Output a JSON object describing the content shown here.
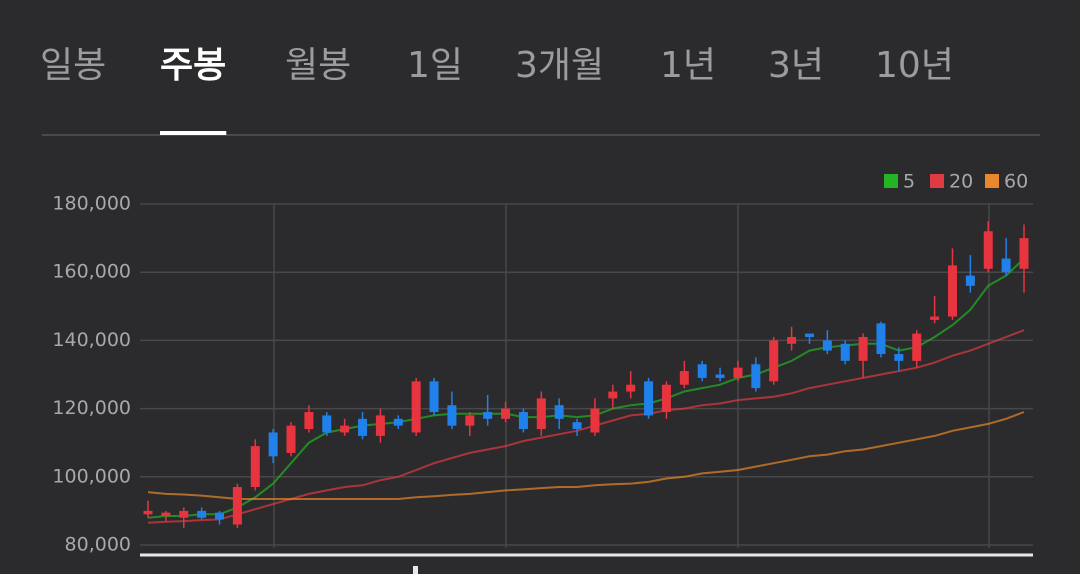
{
  "tabs": {
    "items": [
      "일봉",
      "주봉",
      "월봉",
      "1일",
      "3개월",
      "1년",
      "3년",
      "10년"
    ],
    "selected": 1
  },
  "chart_data": {
    "type": "candlestick",
    "ylim": [
      80000,
      180000
    ],
    "yticks": [
      {
        "value": 80000,
        "label": "80,000"
      },
      {
        "value": 100000,
        "label": "100,000"
      },
      {
        "value": 120000,
        "label": "120,000"
      },
      {
        "value": 140000,
        "label": "140,000"
      },
      {
        "value": 160000,
        "label": "160,000"
      },
      {
        "value": 180000,
        "label": "180,000"
      }
    ],
    "grid": true,
    "legend": "top-right",
    "up_color": "#e8343e",
    "down_color": "#2181ea",
    "ohlc": {
      "open": [
        89000,
        88500,
        88000,
        90000,
        89500,
        86000,
        97000,
        113000,
        107000,
        114000,
        118000,
        113000,
        117000,
        112000,
        117000,
        113000,
        128000,
        121000,
        115000,
        119000,
        117000,
        119000,
        114000,
        121000,
        116000,
        113000,
        123000,
        125000,
        128000,
        119000,
        127000,
        133000,
        130000,
        129000,
        133000,
        128000,
        139000,
        142000,
        140000,
        139000,
        134000,
        145000,
        136000,
        134000,
        146000,
        147000,
        159000,
        161000,
        164000,
        161000
      ],
      "high": [
        93000,
        90000,
        91000,
        91000,
        90000,
        98000,
        111000,
        114000,
        116000,
        121000,
        119000,
        117000,
        119000,
        120000,
        118000,
        129000,
        129000,
        125000,
        119000,
        124000,
        122000,
        120000,
        125000,
        123000,
        117000,
        123000,
        127000,
        131000,
        129000,
        128000,
        134000,
        134000,
        132000,
        134000,
        135000,
        141000,
        144000,
        142000,
        143000,
        140000,
        142000,
        145500,
        138000,
        143000,
        153000,
        167000,
        165000,
        175000,
        170000,
        174000
      ],
      "low": [
        88000,
        87000,
        85000,
        87500,
        86000,
        85000,
        96000,
        104000,
        106000,
        113000,
        112000,
        112000,
        111000,
        110000,
        114000,
        112000,
        118000,
        114000,
        112000,
        115000,
        116000,
        113000,
        112000,
        114000,
        112000,
        112000,
        120000,
        123000,
        117000,
        117000,
        126000,
        128000,
        128000,
        128000,
        125000,
        127000,
        137000,
        139000,
        136000,
        133000,
        129000,
        135000,
        131000,
        132000,
        145000,
        146000,
        154000,
        160000,
        159000,
        154000
      ],
      "close": [
        90000,
        89500,
        90000,
        88000,
        87500,
        97000,
        109000,
        106000,
        115000,
        119000,
        113000,
        115000,
        112000,
        118000,
        115000,
        128000,
        119000,
        115000,
        118000,
        117000,
        120000,
        114000,
        123000,
        117000,
        114000,
        120000,
        125000,
        127000,
        118000,
        127000,
        131000,
        129000,
        129000,
        132000,
        126000,
        140000,
        141000,
        141000,
        137000,
        134000,
        141000,
        136000,
        134000,
        142000,
        147000,
        162000,
        156000,
        172000,
        160000,
        170000
      ]
    },
    "series": [
      {
        "name": "5",
        "color": "#22b422",
        "values": [
          88000,
          88500,
          88500,
          89000,
          89000,
          91000,
          94000,
          98000,
          104000,
          110000,
          113000,
          114000,
          115000,
          115500,
          116000,
          117000,
          118000,
          118500,
          118500,
          118500,
          118500,
          117500,
          117500,
          118000,
          117500,
          118000,
          120000,
          121000,
          121500,
          123000,
          125000,
          126000,
          127000,
          129000,
          130000,
          132000,
          134000,
          137000,
          138000,
          138500,
          139000,
          139000,
          137000,
          138000,
          141000,
          144500,
          149000,
          156000,
          159000,
          164000
        ]
      },
      {
        "name": "20",
        "color": "#e03a42",
        "values": [
          86500,
          86800,
          87000,
          87300,
          87500,
          89000,
          90500,
          92000,
          93500,
          95000,
          96000,
          97000,
          97500,
          99000,
          100000,
          102000,
          104000,
          105500,
          107000,
          108000,
          109000,
          110500,
          111500,
          112500,
          113500,
          115000,
          116500,
          118000,
          118500,
          119500,
          120000,
          121000,
          121500,
          122500,
          123000,
          123500,
          124500,
          126000,
          127000,
          128000,
          129000,
          130000,
          131000,
          132000,
          133500,
          135500,
          137000,
          139000,
          141000,
          143000
        ]
      },
      {
        "name": "60",
        "color": "#e8882a",
        "values": [
          95500,
          95000,
          94800,
          94500,
          94000,
          93500,
          93500,
          93500,
          93500,
          93500,
          93500,
          93500,
          93500,
          93500,
          93500,
          94000,
          94300,
          94700,
          95000,
          95500,
          96000,
          96300,
          96700,
          97000,
          97000,
          97500,
          97800,
          98000,
          98500,
          99500,
          100000,
          101000,
          101500,
          102000,
          103000,
          104000,
          105000,
          106000,
          106500,
          107500,
          108000,
          109000,
          110000,
          111000,
          112000,
          113500,
          114500,
          115500,
          117000,
          119000
        ]
      }
    ]
  }
}
